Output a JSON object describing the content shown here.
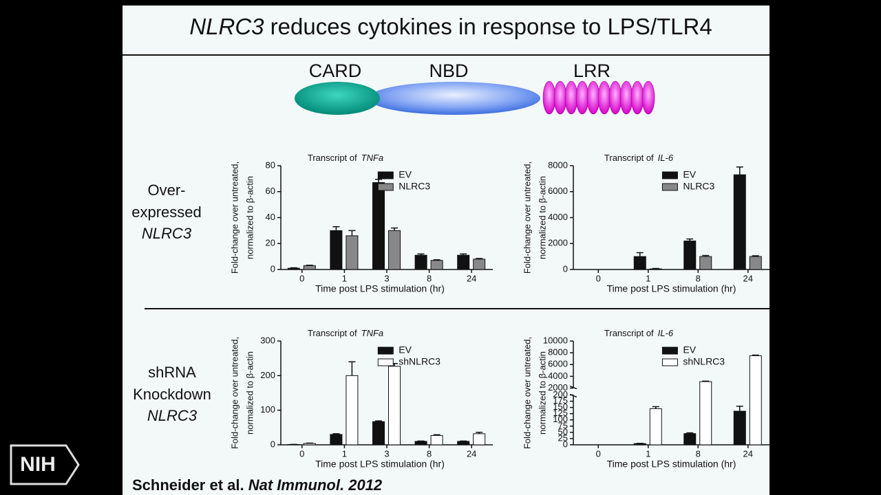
{
  "title_italic": "NLRC3",
  "title_rest": " reduces cytokines in response to LPS/TLR4",
  "domains": [
    "CARD",
    "NBD",
    "LRR"
  ],
  "rows": [
    {
      "lines": [
        "Over-",
        "expressed",
        "NLRC3"
      ]
    },
    {
      "lines": [
        "shRNA",
        "Knockdown",
        "NLRC3"
      ]
    }
  ],
  "citation_authors": "Schneider et al.",
  "citation_journal": "Nat Immunol.",
  "citation_year": "2012",
  "logo": "NIH",
  "chart_data": [
    {
      "type": "bar",
      "title": "Transcript of",
      "title_italic": "TNFa",
      "ylabel": [
        "Fold-change over untreated,",
        "normalized to β-actin"
      ],
      "xlabel": "Time post LPS stimulation (hr)",
      "categories": [
        "0",
        "1",
        "3",
        "8",
        "24"
      ],
      "series": [
        {
          "name": "EV",
          "color": "#111111",
          "values": [
            1,
            30,
            67,
            11,
            11
          ],
          "errors": [
            0.3,
            3,
            2.5,
            1,
            1
          ]
        },
        {
          "name": "NLRC3",
          "color": "#888888",
          "values": [
            3,
            26,
            30,
            7,
            8
          ],
          "errors": [
            0.3,
            4,
            2,
            0.5,
            0.5
          ]
        }
      ],
      "ylim": [
        0,
        80
      ],
      "yticks": [
        0,
        20,
        40,
        60,
        80
      ]
    },
    {
      "type": "bar",
      "title": "Transcript of",
      "title_italic": "IL-6",
      "ylabel": [
        "Fold-change over untreated,",
        "normalized to β-actin"
      ],
      "xlabel": "Time post LPS stimulation (hr)",
      "categories": [
        "0",
        "1",
        "8",
        "24"
      ],
      "series": [
        {
          "name": "EV",
          "color": "#111111",
          "values": [
            0,
            1000,
            2200,
            7300
          ],
          "errors": [
            0,
            300,
            150,
            600
          ]
        },
        {
          "name": "NLRC3",
          "color": "#888888",
          "values": [
            0,
            50,
            1000,
            1000
          ],
          "errors": [
            0,
            30,
            80,
            60
          ]
        }
      ],
      "ylim": [
        0,
        8000
      ],
      "yticks": [
        0,
        2000,
        4000,
        6000,
        8000
      ]
    },
    {
      "type": "bar",
      "title": "Transcript of",
      "title_italic": "TNFa",
      "ylabel": [
        "Fold-change over untreated,",
        "normalized to β-actin"
      ],
      "xlabel": "Time post LPS stimulation (hr)",
      "categories": [
        "0",
        "1",
        "3",
        "8",
        "24"
      ],
      "series": [
        {
          "name": "EV",
          "color": "#111111",
          "values": [
            1,
            30,
            67,
            10,
            10
          ],
          "errors": [
            0.3,
            2,
            2,
            1,
            1
          ]
        },
        {
          "name": "shNLRC3",
          "color": "#ffffff",
          "values": [
            4,
            200,
            227,
            27,
            32
          ],
          "errors": [
            1,
            40,
            8,
            2,
            4
          ]
        }
      ],
      "ylim": [
        0,
        300
      ],
      "yticks": [
        0,
        100,
        200,
        300
      ]
    },
    {
      "type": "bar",
      "title": "Transcript of",
      "title_italic": "IL-6",
      "ylabel": [
        "Fold-change over untreated,",
        "normalized to β-actin"
      ],
      "xlabel": "Time post LPS stimulation (hr)",
      "categories": [
        "0",
        "1",
        "8",
        "24"
      ],
      "series": [
        {
          "name": "EV",
          "color": "#111111",
          "values": [
            0,
            5,
            45,
            135
          ],
          "errors": [
            0,
            1,
            3,
            20
          ]
        },
        {
          "name": "shNLRC3",
          "color": "#ffffff",
          "values": [
            0,
            145,
            3100,
            7500
          ],
          "errors": [
            0,
            8,
            80,
            100
          ]
        }
      ],
      "ylim": [
        0,
        10000
      ],
      "ybreak": [
        200,
        2000
      ],
      "yticks": [
        0,
        25,
        50,
        75,
        100,
        125,
        150,
        175,
        200,
        2000,
        4000,
        6000,
        8000,
        10000
      ]
    }
  ]
}
